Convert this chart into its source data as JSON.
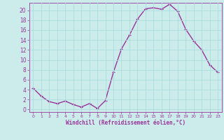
{
  "x": [
    0,
    1,
    2,
    3,
    4,
    5,
    6,
    7,
    8,
    9,
    10,
    11,
    12,
    13,
    14,
    15,
    16,
    17,
    18,
    19,
    20,
    21,
    22,
    23
  ],
  "y": [
    4.3,
    2.7,
    1.6,
    1.2,
    1.7,
    1.0,
    0.5,
    1.2,
    0.2,
    1.8,
    7.5,
    12.2,
    15.0,
    18.2,
    20.3,
    20.5,
    20.2,
    21.2,
    19.8,
    16.2,
    13.8,
    12.0,
    9.0,
    7.5
  ],
  "line_color": "#993399",
  "marker": "+",
  "marker_size": 3,
  "linewidth": 1.0,
  "bg_color": "#ccecec",
  "grid_color": "#aadddd",
  "xlabel": "Windchill (Refroidissement éolien,°C)",
  "xlabel_color": "#993399",
  "tick_color": "#993399",
  "ylim": [
    -0.5,
    21.5
  ],
  "xlim": [
    -0.5,
    23.5
  ],
  "yticks": [
    0,
    2,
    4,
    6,
    8,
    10,
    12,
    14,
    16,
    18,
    20
  ],
  "xticks": [
    0,
    1,
    2,
    3,
    4,
    5,
    6,
    7,
    8,
    9,
    10,
    11,
    12,
    13,
    14,
    15,
    16,
    17,
    18,
    19,
    20,
    21,
    22,
    23
  ],
  "xtick_labels": [
    "0",
    "1",
    "2",
    "3",
    "4",
    "5",
    "6",
    "7",
    "8",
    "9",
    "10",
    "11",
    "12",
    "13",
    "14",
    "15",
    "16",
    "17",
    "18",
    "19",
    "20",
    "21",
    "22",
    "23"
  ]
}
